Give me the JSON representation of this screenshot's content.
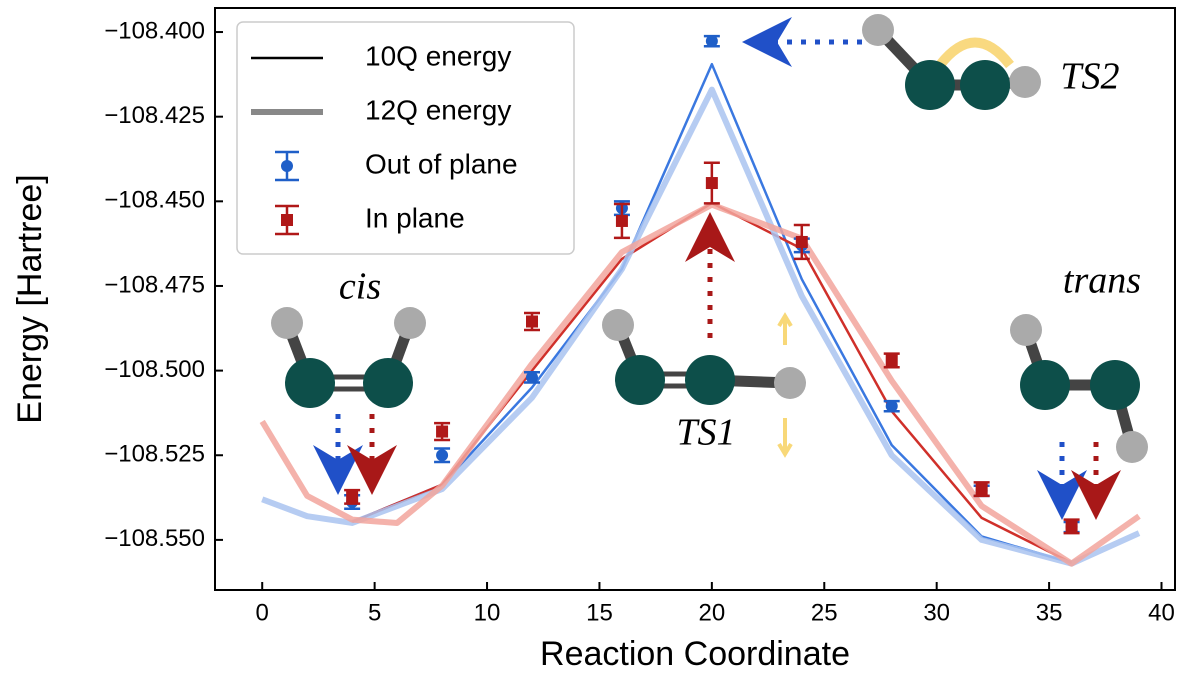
{
  "chart_data": {
    "type": "line",
    "xlabel": "Reaction Coordinate",
    "ylabel": "Energy [Hartree]",
    "xlim": [
      -2.1,
      40.6
    ],
    "ylim": [
      -108.5648,
      -108.3929
    ],
    "xticks": [
      0,
      5,
      10,
      15,
      20,
      25,
      30,
      35,
      40
    ],
    "yticks": [
      {
        "value": -108.4,
        "label": "−108.400"
      },
      {
        "value": -108.425,
        "label": "−108.425"
      },
      {
        "value": -108.45,
        "label": "−108.450"
      },
      {
        "value": -108.475,
        "label": "−108.475"
      },
      {
        "value": -108.5,
        "label": "−108.500"
      },
      {
        "value": -108.525,
        "label": "−108.525"
      },
      {
        "value": -108.55,
        "label": "−108.550"
      }
    ],
    "legend": "upper left",
    "lines": [
      {
        "name": "10Q energy",
        "color": "#000000",
        "width": 2.5,
        "curves": [
          {
            "color": "#3a78e0",
            "x": [
              4,
              8,
              12,
              16,
              20,
              24,
              28,
              32,
              36
            ],
            "values": [
              -108.5447,
              -108.5337,
              -108.505,
              -108.47,
              -108.4095,
              -108.473,
              -108.522,
              -108.549,
              -108.5568
            ]
          },
          {
            "color": "#d0302a",
            "x": [
              4,
              8,
              12,
              16,
              20,
              24,
              28,
              32,
              36
            ],
            "values": [
              -108.5447,
              -108.5337,
              -108.5,
              -108.467,
              -108.4505,
              -108.464,
              -108.512,
              -108.5435,
              -108.5568
            ]
          }
        ]
      },
      {
        "name": "12Q energy",
        "color": "#888888",
        "width": 6,
        "curves": [
          {
            "color": "#a9c3f0",
            "x": [
              0,
              2,
              4,
              8,
              12,
              16,
              20,
              24,
              28,
              32,
              36,
              39
            ],
            "values": [
              -108.538,
              -108.543,
              -108.545,
              -108.535,
              -108.508,
              -108.47,
              -108.417,
              -108.478,
              -108.525,
              -108.55,
              -108.557,
              -108.548
            ]
          },
          {
            "color": "#f2a49c",
            "x": [
              0,
              2,
              4,
              6,
              8,
              12,
              16,
              20,
              24,
              28,
              32,
              36,
              39
            ],
            "values": [
              -108.515,
              -108.537,
              -108.544,
              -108.545,
              -108.534,
              -108.498,
              -108.465,
              -108.451,
              -108.461,
              -108.503,
              -108.54,
              -108.557,
              -108.543
            ]
          }
        ]
      }
    ],
    "points": [
      {
        "name": "Out of plane",
        "color": "#1f5fc8",
        "marker": "circle",
        "x": [
          4,
          8,
          12,
          16,
          20,
          24,
          28,
          32,
          36
        ],
        "values": [
          -108.5388,
          -108.525,
          -108.502,
          -108.452,
          -108.4027,
          -108.463,
          -108.5105,
          -108.5355,
          -108.5462
        ],
        "errors": [
          0.002,
          0.002,
          0.0015,
          0.002,
          0.0015,
          0.002,
          0.0015,
          0.0015,
          0.0015
        ]
      },
      {
        "name": "In plane",
        "color": "#b01818",
        "marker": "square",
        "x": [
          4,
          8,
          12,
          16,
          20,
          24,
          28,
          32,
          36
        ],
        "values": [
          -108.5373,
          -108.518,
          -108.4855,
          -108.4558,
          -108.4446,
          -108.462,
          -108.497,
          -108.535,
          -108.546
        ],
        "errors": [
          0.002,
          0.0025,
          0.0025,
          0.005,
          0.006,
          0.005,
          0.002,
          0.002,
          0.002
        ]
      }
    ],
    "annotations": [
      "cis",
      "trans",
      "TS1",
      "TS2"
    ]
  }
}
